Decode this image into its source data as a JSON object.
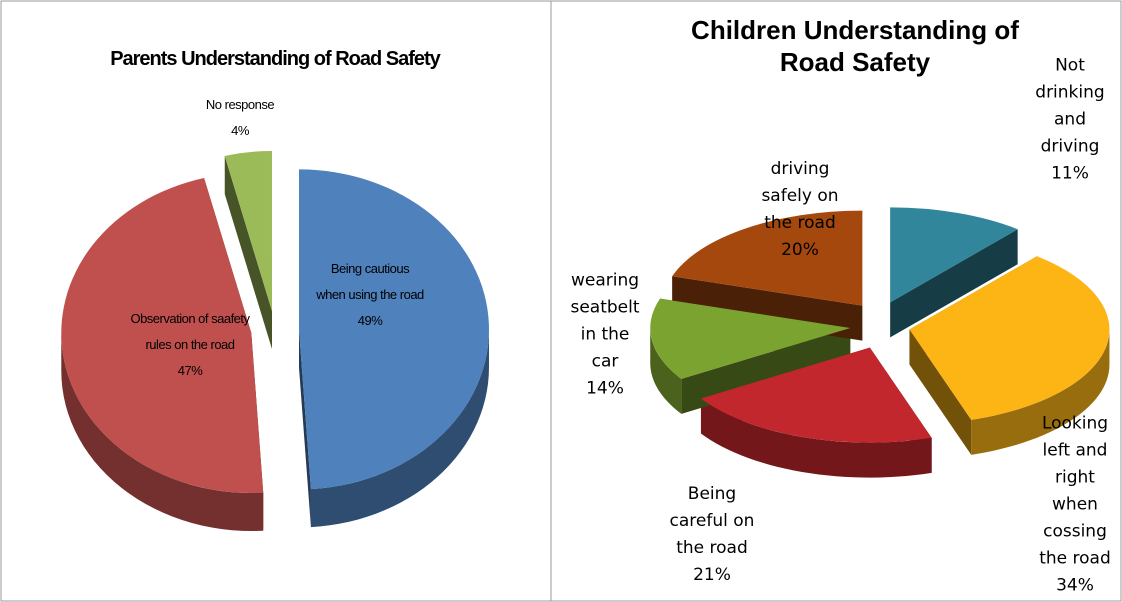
{
  "chart_data": [
    {
      "type": "pie",
      "title": "Parents Understanding of Road Safety",
      "categories": [
        "Being cautious when using the road",
        "Observation of saafety rules on the road",
        "No response"
      ],
      "values": [
        49,
        47,
        4
      ],
      "value_labels": [
        "49%",
        "47%",
        "4%"
      ],
      "colors": [
        "#4f81bd",
        "#c0504d",
        "#9bbb59"
      ]
    },
    {
      "type": "pie",
      "title": "Children Understanding of Road Safety",
      "categories": [
        "Not drinking and driving",
        "Looking left and right when cossing the road",
        "Being careful on the road",
        "wearing seatbelt in the car",
        "driving safely on the road"
      ],
      "values": [
        11,
        34,
        21,
        14,
        20
      ],
      "value_labels": [
        "11%",
        "34%",
        "21%",
        "14%",
        "20%"
      ],
      "colors": [
        "#31869b",
        "#fdb515",
        "#c1272d",
        "#7ba32f",
        "#a5480d"
      ]
    }
  ]
}
